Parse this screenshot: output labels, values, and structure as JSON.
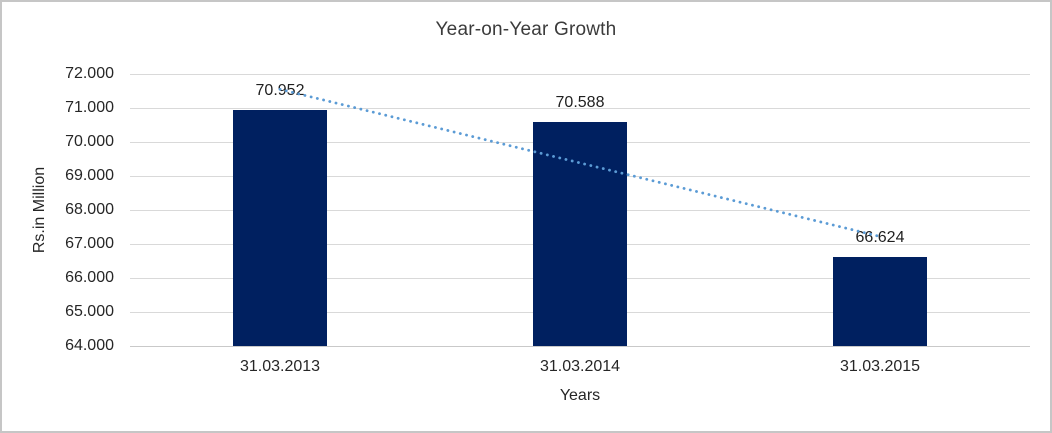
{
  "window": {
    "background_color": "#FFFFFF",
    "border_color": "#C6C6C6"
  },
  "chart_data": {
    "type": "bar",
    "title": "Year-on-Year Growth",
    "categories": [
      "31.03.2013",
      "31.03.2014",
      "31.03.2015"
    ],
    "values": [
      70.952,
      70.588,
      66.624
    ],
    "data_labels": [
      "70.952",
      "70.588",
      "66.624"
    ],
    "xlabel": "Years",
    "ylabel": "Rs.in Million",
    "ylim": [
      64,
      72
    ],
    "ytick_labels": [
      "64.000",
      "65.000",
      "66.000",
      "67.000",
      "68.000",
      "69.000",
      "70.000",
      "71.000",
      "72.000"
    ],
    "grid": true,
    "legend": "none",
    "bar_color": "#002060",
    "gridline_color": "#D9D9D9",
    "axis_line_color": "#C9C9C9",
    "text_color": "#262626",
    "trendline": {
      "type": "linear",
      "style": "dotted",
      "color": "#5B9BD5",
      "start_value": 71.55,
      "end_value": 67.22
    }
  }
}
